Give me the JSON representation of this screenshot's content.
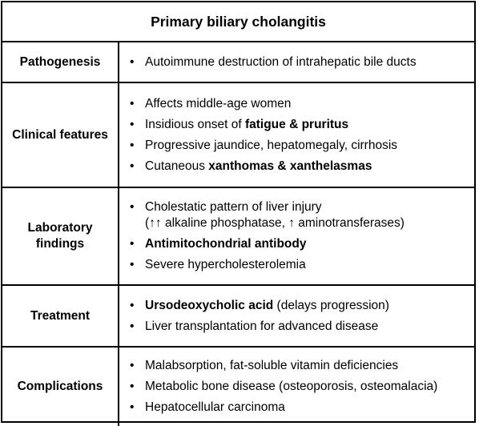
{
  "title": "Primary biliary cholangitis",
  "rows": [
    {
      "label": "Pathogenesis",
      "items": [
        {
          "text": "Autoimmune destruction of intrahepatic bile ducts"
        }
      ]
    },
    {
      "label": "Clinical features",
      "items": [
        {
          "text": "Affects middle-age women"
        },
        {
          "pre": "Insidious onset of ",
          "bold": "fatigue & pruritus"
        },
        {
          "text": "Progressive jaundice, hepatomegaly, cirrhosis"
        },
        {
          "pre": "Cutaneous ",
          "bold": "xanthomas & xanthelasmas"
        }
      ]
    },
    {
      "label": "Laboratory findings",
      "items": [
        {
          "text": "Cholestatic pattern of liver injury",
          "sub": "(↑↑ alkaline phosphatase, ↑ aminotransferases)"
        },
        {
          "bold": "Antimitochondrial antibody"
        },
        {
          "text": "Severe hypercholesterolemia"
        }
      ]
    },
    {
      "label": "Treatment",
      "items": [
        {
          "bold": "Ursodeoxycholic acid",
          "post": " (delays progression)"
        },
        {
          "text": "Liver transplantation for advanced disease"
        }
      ]
    },
    {
      "label": "Complications",
      "items": [
        {
          "text": "Malabsorption, fat-soluble vitamin deficiencies"
        },
        {
          "text": "Metabolic bone disease (osteoporosis, osteomalacia)"
        },
        {
          "text": "Hepatocellular carcinoma"
        }
      ]
    }
  ]
}
